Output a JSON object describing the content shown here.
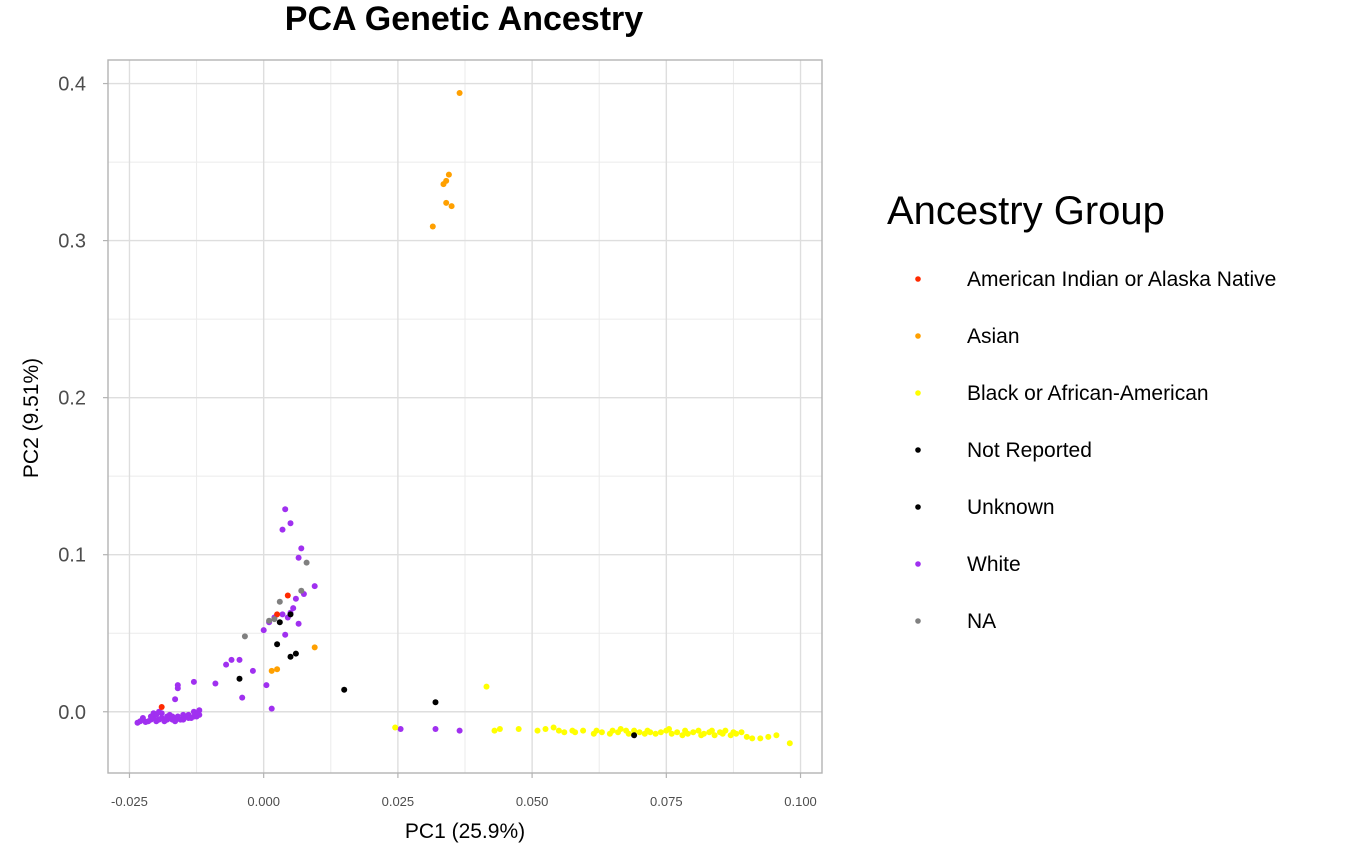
{
  "chart_data": {
    "type": "scatter",
    "title": "PCA Genetic Ancestry",
    "xlabel": "PC1 (25.9%)",
    "ylabel": "PC2 (9.51%)",
    "xlim": [
      -0.029,
      0.104
    ],
    "ylim": [
      -0.039,
      0.415
    ],
    "x_ticks": [
      -0.025,
      0.0,
      0.025,
      0.05,
      0.075,
      0.1
    ],
    "x_tick_labels": [
      "-0.025",
      "0.000",
      "0.025",
      "0.050",
      "0.075",
      "0.100"
    ],
    "y_ticks": [
      0.0,
      0.1,
      0.2,
      0.3,
      0.4
    ],
    "y_tick_labels": [
      "0.0",
      "0.1",
      "0.2",
      "0.3",
      "0.4"
    ],
    "grid": true,
    "legend": {
      "title": "Ancestry Group",
      "placement": "right",
      "entries": [
        {
          "label": "American Indian or Alaska Native",
          "color": "#ff2a00"
        },
        {
          "label": "Asian",
          "color": "#ffa000"
        },
        {
          "label": "Black or African-American",
          "color": "#ffff00"
        },
        {
          "label": "Not Reported",
          "color": "#000000"
        },
        {
          "label": "Unknown",
          "color": "#000000"
        },
        {
          "label": "White",
          "color": "#a030f0"
        },
        {
          "label": "NA",
          "color": "#808080"
        }
      ]
    },
    "series": [
      {
        "name": "White",
        "color": "#a030f0",
        "points": [
          [
            -0.0235,
            -0.007
          ],
          [
            -0.023,
            -0.006
          ],
          [
            -0.0225,
            -0.005
          ],
          [
            -0.022,
            -0.0065
          ],
          [
            -0.0215,
            -0.006
          ],
          [
            -0.021,
            -0.005
          ],
          [
            -0.0205,
            -0.004
          ],
          [
            -0.02,
            -0.006
          ],
          [
            -0.0195,
            -0.005
          ],
          [
            -0.019,
            -0.004
          ],
          [
            -0.0185,
            -0.006
          ],
          [
            -0.018,
            -0.005
          ],
          [
            -0.0175,
            -0.004
          ],
          [
            -0.017,
            -0.005
          ],
          [
            -0.0165,
            -0.006
          ],
          [
            -0.016,
            -0.004
          ],
          [
            -0.0155,
            -0.005
          ],
          [
            -0.015,
            -0.005
          ],
          [
            -0.0145,
            -0.003
          ],
          [
            -0.014,
            -0.004
          ],
          [
            -0.0135,
            -0.004
          ],
          [
            -0.013,
            -0.003
          ],
          [
            -0.0125,
            -0.003
          ],
          [
            -0.012,
            -0.002
          ],
          [
            -0.0225,
            -0.004
          ],
          [
            -0.021,
            -0.003
          ],
          [
            -0.02,
            -0.002
          ],
          [
            -0.019,
            -0.001
          ],
          [
            -0.0195,
            0.0
          ],
          [
            -0.0205,
            -0.001
          ],
          [
            -0.018,
            -0.003
          ],
          [
            -0.0175,
            -0.002
          ],
          [
            -0.017,
            -0.003
          ],
          [
            -0.016,
            -0.003
          ],
          [
            -0.015,
            -0.002
          ],
          [
            -0.014,
            -0.002
          ],
          [
            -0.013,
            0.0
          ],
          [
            -0.012,
            0.001
          ],
          [
            -0.0123,
            -0.0015
          ],
          [
            -0.016,
            0.015
          ],
          [
            -0.016,
            0.017
          ],
          [
            -0.0165,
            0.008
          ],
          [
            -0.013,
            0.019
          ],
          [
            -0.009,
            0.018
          ],
          [
            -0.007,
            0.03
          ],
          [
            -0.006,
            0.033
          ],
          [
            -0.0045,
            0.033
          ],
          [
            -0.004,
            0.009
          ],
          [
            -0.002,
            0.026
          ],
          [
            0.0,
            0.052
          ],
          [
            0.0005,
            0.017
          ],
          [
            0.0015,
            0.002
          ],
          [
            0.001,
            0.057
          ],
          [
            0.002,
            0.06
          ],
          [
            0.0035,
            0.062
          ],
          [
            0.004,
            0.049
          ],
          [
            0.0045,
            0.06
          ],
          [
            0.005,
            0.063
          ],
          [
            0.0055,
            0.066
          ],
          [
            0.006,
            0.072
          ],
          [
            0.0065,
            0.056
          ],
          [
            0.0075,
            0.075
          ],
          [
            0.0095,
            0.08
          ],
          [
            0.004,
            0.129
          ],
          [
            0.0035,
            0.116
          ],
          [
            0.005,
            0.12
          ],
          [
            0.007,
            0.104
          ],
          [
            0.0065,
            0.098
          ],
          [
            0.0255,
            -0.011
          ],
          [
            0.032,
            -0.011
          ],
          [
            0.0365,
            -0.012
          ]
        ]
      },
      {
        "name": "Asian",
        "color": "#ffa000",
        "points": [
          [
            0.0365,
            0.394
          ],
          [
            0.0345,
            0.342
          ],
          [
            0.034,
            0.338
          ],
          [
            0.0335,
            0.336
          ],
          [
            0.034,
            0.324
          ],
          [
            0.035,
            0.322
          ],
          [
            0.0315,
            0.309
          ],
          [
            0.0095,
            0.041
          ],
          [
            0.0015,
            0.026
          ],
          [
            0.0025,
            0.027
          ]
        ]
      },
      {
        "name": "Black or African-American",
        "color": "#ffff00",
        "points": [
          [
            0.0245,
            -0.01
          ],
          [
            0.0415,
            0.016
          ],
          [
            0.043,
            -0.012
          ],
          [
            0.044,
            -0.011
          ],
          [
            0.0475,
            -0.011
          ],
          [
            0.051,
            -0.012
          ],
          [
            0.0525,
            -0.011
          ],
          [
            0.054,
            -0.01
          ],
          [
            0.055,
            -0.012
          ],
          [
            0.056,
            -0.013
          ],
          [
            0.0575,
            -0.012
          ],
          [
            0.058,
            -0.013
          ],
          [
            0.0595,
            -0.012
          ],
          [
            0.0615,
            -0.014
          ],
          [
            0.062,
            -0.012
          ],
          [
            0.063,
            -0.013
          ],
          [
            0.0645,
            -0.014
          ],
          [
            0.065,
            -0.012
          ],
          [
            0.066,
            -0.013
          ],
          [
            0.0665,
            -0.011
          ],
          [
            0.0675,
            -0.012
          ],
          [
            0.068,
            -0.014
          ],
          [
            0.069,
            -0.012
          ],
          [
            0.07,
            -0.013
          ],
          [
            0.071,
            -0.014
          ],
          [
            0.0715,
            -0.012
          ],
          [
            0.072,
            -0.013
          ],
          [
            0.073,
            -0.014
          ],
          [
            0.074,
            -0.013
          ],
          [
            0.075,
            -0.012
          ],
          [
            0.0755,
            -0.011
          ],
          [
            0.076,
            -0.014
          ],
          [
            0.077,
            -0.013
          ],
          [
            0.078,
            -0.015
          ],
          [
            0.0785,
            -0.012
          ],
          [
            0.079,
            -0.014
          ],
          [
            0.08,
            -0.013
          ],
          [
            0.081,
            -0.012
          ],
          [
            0.0815,
            -0.015
          ],
          [
            0.082,
            -0.014
          ],
          [
            0.083,
            -0.013
          ],
          [
            0.0835,
            -0.012
          ],
          [
            0.084,
            -0.015
          ],
          [
            0.085,
            -0.013
          ],
          [
            0.0855,
            -0.014
          ],
          [
            0.086,
            -0.012
          ],
          [
            0.087,
            -0.015
          ],
          [
            0.0875,
            -0.013
          ],
          [
            0.088,
            -0.014
          ],
          [
            0.089,
            -0.013
          ],
          [
            0.09,
            -0.016
          ],
          [
            0.091,
            -0.017
          ],
          [
            0.0925,
            -0.017
          ],
          [
            0.094,
            -0.016
          ],
          [
            0.0955,
            -0.015
          ],
          [
            0.098,
            -0.02
          ]
        ]
      },
      {
        "name": "Not Reported",
        "color": "#000000",
        "points": [
          [
            0.003,
            0.057
          ],
          [
            0.005,
            0.062
          ],
          [
            0.0025,
            0.043
          ],
          [
            0.005,
            0.035
          ],
          [
            0.006,
            0.037
          ],
          [
            -0.0045,
            0.021
          ],
          [
            0.015,
            0.014
          ],
          [
            0.032,
            0.006
          ],
          [
            0.069,
            -0.015
          ]
        ]
      },
      {
        "name": "American Indian or Alaska Native",
        "color": "#ff2a00",
        "points": [
          [
            -0.019,
            0.003
          ],
          [
            0.0025,
            0.062
          ],
          [
            0.0045,
            0.074
          ]
        ]
      },
      {
        "name": "NA",
        "color": "#808080",
        "points": [
          [
            -0.0035,
            0.048
          ],
          [
            0.001,
            0.058
          ],
          [
            0.002,
            0.059
          ],
          [
            0.003,
            0.07
          ],
          [
            0.007,
            0.077
          ],
          [
            0.008,
            0.095
          ]
        ]
      }
    ]
  }
}
